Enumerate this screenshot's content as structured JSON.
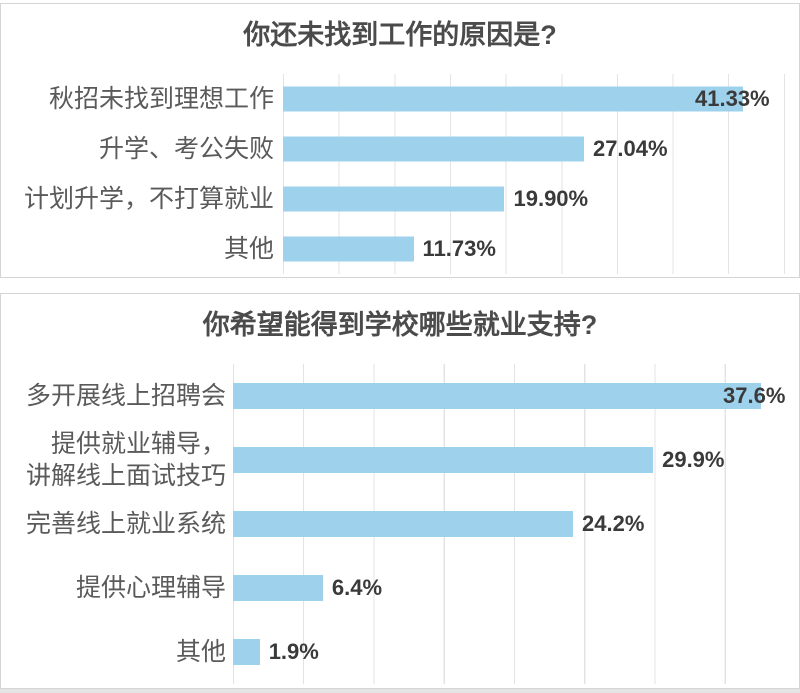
{
  "colors": {
    "bar": "#9ed2ec",
    "grid": "#e3e3e3",
    "panel_border": "#d5d5d5",
    "title_text": "#4b4b4b",
    "category_text": "#5a5a5a",
    "value_text": "#3a3a3a"
  },
  "chart_data": [
    {
      "type": "bar",
      "orientation": "horizontal",
      "title": "你还未找到工作的原因是?",
      "categories": [
        "秋招未找到理想工作",
        "升学、考公失败",
        "计划升学，不打算就业",
        "其他"
      ],
      "values": [
        41.33,
        27.04,
        19.9,
        11.73
      ],
      "value_labels": [
        "41.33%",
        "27.04%",
        "19.90%",
        "11.73%"
      ],
      "xlim": [
        0,
        46
      ],
      "gridline_step_pct": 5,
      "grid": "vertical",
      "legend": "none",
      "bar_color": "#9ed2ec"
    },
    {
      "type": "bar",
      "orientation": "horizontal",
      "title": "你希望能得到学校哪些就业支持?",
      "categories": [
        "多开展线上招聘会",
        "提供就业辅导，\n讲解线上面试技巧",
        "完善线上就业系统",
        "提供心理辅导",
        "其他"
      ],
      "values": [
        37.6,
        29.9,
        24.2,
        6.4,
        1.9
      ],
      "value_labels": [
        "37.6%",
        "29.9%",
        "24.2%",
        "6.4%",
        "1.9%"
      ],
      "xlim": [
        0,
        40
      ],
      "gridline_step_pct": 5,
      "grid": "vertical",
      "legend": "none",
      "bar_color": "#9ed2ec"
    }
  ]
}
